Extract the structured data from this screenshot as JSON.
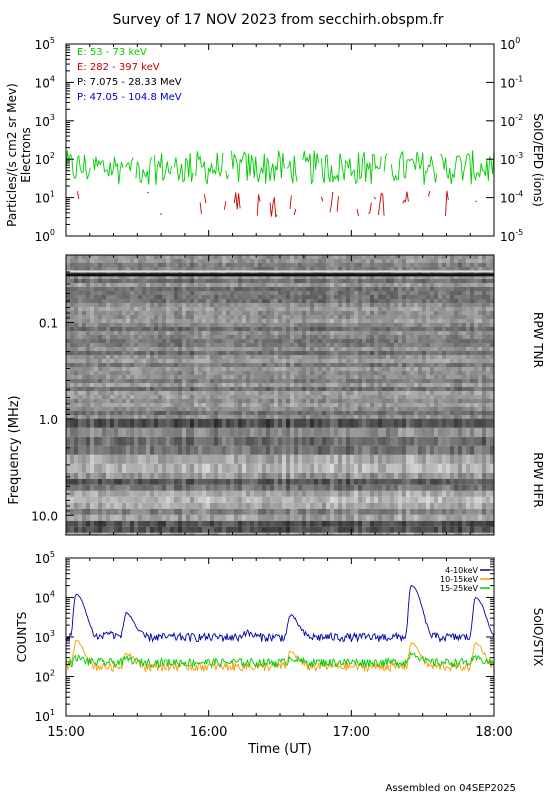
{
  "title": "Survey of 17 NOV 2023 from secchirh.obspm.fr",
  "footer": "Assembled on 04SEP2025",
  "chart_data": [
    {
      "type": "line",
      "panel": "epd",
      "ylabel_left": "Particles/(s cm2 sr Mev)",
      "ylabel_left_2": "Electrons",
      "ylabel_right": "SolO/EPD (ions)",
      "yscale": "log",
      "ylim": [
        1,
        100000
      ],
      "y_ticks": [
        {
          "label": "10",
          "exp": "0"
        },
        {
          "label": "10",
          "exp": "1"
        },
        {
          "label": "10",
          "exp": "2"
        },
        {
          "label": "10",
          "exp": "3"
        },
        {
          "label": "10",
          "exp": "4"
        },
        {
          "label": "10",
          "exp": "5"
        }
      ],
      "ylim_right": [
        1e-05,
        1
      ],
      "y_ticks_right": [
        {
          "label": "10",
          "exp": "-5"
        },
        {
          "label": "10",
          "exp": "-4"
        },
        {
          "label": "10",
          "exp": "-3"
        },
        {
          "label": "10",
          "exp": "-2"
        },
        {
          "label": "10",
          "exp": "-1"
        },
        {
          "label": "10",
          "exp": "0"
        }
      ],
      "legend_placement": "top-left",
      "series": [
        {
          "name": "E: 53 - 73 keV",
          "color": "#00cc00",
          "level": 60,
          "spread": 0.45,
          "density": 0.95
        },
        {
          "name": "E: 282 - 397 keV",
          "color": "#cc0000",
          "level": 7,
          "spread": 0.35,
          "density": 0.35
        },
        {
          "name": "P: 7.075 - 28.33 MeV",
          "color": "#000000"
        },
        {
          "name": "P: 47.05 - 104.8 MeV",
          "color": "#0000cc"
        }
      ]
    },
    {
      "type": "heatmap",
      "panel": "rpw",
      "ylabel": "Frequency (MHz)",
      "yscale": "log",
      "ylim": [
        0.02,
        16
      ],
      "y_ticks": [
        "0.1",
        "1.0",
        "10.0"
      ],
      "y_tick_values": [
        0.1,
        1,
        10
      ],
      "band_boundary_mhz": 1.0,
      "label_tnr": "RPW TNR",
      "label_hfr": "RPW HFR",
      "colormap": "grayscale"
    },
    {
      "type": "line",
      "panel": "stix",
      "ylabel": "COUNTS",
      "ylabel_right": "SolO/STIX",
      "yscale": "log",
      "ylim": [
        10,
        100000
      ],
      "y_ticks": [
        {
          "label": "10",
          "exp": "1"
        },
        {
          "label": "10",
          "exp": "2"
        },
        {
          "label": "10",
          "exp": "3"
        },
        {
          "label": "10",
          "exp": "4"
        },
        {
          "label": "10",
          "exp": "5"
        }
      ],
      "legend_placement": "top-right",
      "xlabel": "Time (UT)",
      "x_range_hours": [
        15,
        18
      ],
      "x_ticks": [
        "15:00",
        "16:00",
        "17:00",
        "18:00"
      ],
      "x_tick_values": [
        15,
        16,
        17,
        18
      ],
      "series": [
        {
          "name": "4-10keV",
          "color": "#0000aa",
          "base": 1000,
          "peaks": [
            [
              15.07,
              12000
            ],
            [
              15.42,
              4000
            ],
            [
              16.57,
              3500
            ],
            [
              17.42,
              20000
            ],
            [
              17.87,
              10000
            ],
            [
              16.25,
              1300
            ],
            [
              15.28,
              1300
            ]
          ]
        },
        {
          "name": "10-15keV",
          "color": "#ff9900",
          "base": 180,
          "peaks": [
            [
              15.07,
              800
            ],
            [
              15.42,
              400
            ],
            [
              16.57,
              420
            ],
            [
              17.42,
              700
            ],
            [
              17.87,
              700
            ]
          ]
        },
        {
          "name": "15-25keV",
          "color": "#00cc00",
          "base": 230,
          "peaks": [
            [
              15.07,
              300
            ],
            [
              15.42,
              280
            ],
            [
              16.57,
              300
            ],
            [
              17.42,
              400
            ],
            [
              17.87,
              290
            ]
          ]
        }
      ]
    }
  ]
}
